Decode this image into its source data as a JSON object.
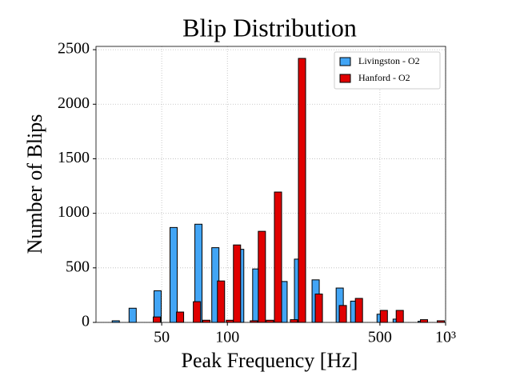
{
  "chart_data": {
    "type": "bar",
    "title": "Blip Distribution",
    "x_label": "Peak Frequency [Hz]",
    "y_label": "Number of Blips",
    "log_x": true,
    "grid": true,
    "legend_position": "upper-right",
    "xlim": [
      25,
      1000
    ],
    "ylim": [
      0,
      2530
    ],
    "xticks": [
      50,
      100,
      500,
      {
        "value": 1000,
        "label": "10³"
      }
    ],
    "yticks": [
      0,
      500,
      1000,
      1500,
      2000,
      2500
    ],
    "series": [
      {
        "name": "Livingston - O2",
        "color": "#42a5f5",
        "x": [
          30.8,
          36.8,
          47.9,
          56.7,
          73.7,
          88.1,
          114.5,
          135.6,
          180.9,
          210.7,
          253.8,
          327.2,
          381.1,
          503.7,
          596.7,
          776.2,
          950.6
        ],
        "values": [
          15,
          130,
          290,
          870,
          900,
          685,
          670,
          490,
          375,
          580,
          390,
          315,
          195,
          75,
          30,
          10,
          5
        ]
      },
      {
        "name": "Hanford - O2",
        "color": "#e00000",
        "x": [
          47.5,
          60.7,
          72.5,
          80.2,
          93.5,
          102.6,
          110.7,
          132.2,
          143.9,
          156.6,
          170.6,
          201.8,
          219.8,
          262.5,
          338.2,
          400.8,
          521.2,
          616.6,
          796.2,
          950.6
        ],
        "values": [
          50,
          95,
          190,
          20,
          380,
          20,
          710,
          15,
          835,
          20,
          1195,
          25,
          2420,
          260,
          155,
          220,
          110,
          110,
          25,
          15
        ]
      }
    ]
  }
}
